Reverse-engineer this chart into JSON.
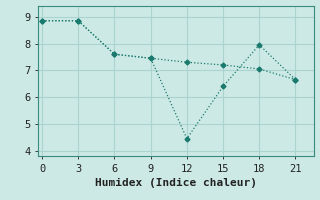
{
  "xlabel": "Humidex (Indice chaleur)",
  "background_color": "#cce9e5",
  "grid_color": "#aad4cf",
  "line_color": "#1a7a6e",
  "x_ticks": [
    0,
    3,
    6,
    9,
    12,
    15,
    18,
    21
  ],
  "ylim": [
    3.8,
    9.4
  ],
  "xlim": [
    -0.3,
    22.5
  ],
  "y_ticks": [
    4,
    5,
    6,
    7,
    8,
    9
  ],
  "line1_x": [
    0,
    3,
    6,
    9,
    12,
    15,
    18,
    21
  ],
  "line1_y": [
    8.85,
    8.85,
    7.6,
    7.45,
    4.45,
    6.4,
    7.95,
    6.65
  ],
  "line2_x": [
    0,
    3,
    6,
    9,
    12,
    15,
    18,
    21
  ],
  "line2_y": [
    8.85,
    8.85,
    7.6,
    7.45,
    7.3,
    7.2,
    7.05,
    6.65
  ],
  "tick_fontsize": 7.5,
  "xlabel_fontsize": 8
}
